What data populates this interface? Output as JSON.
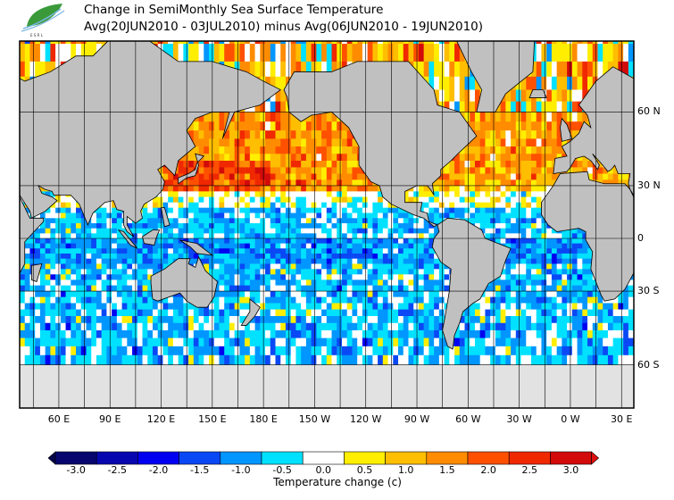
{
  "logo": {
    "text": "ESRL PSD"
  },
  "title": {
    "line1": "Change in SemiMonthly Sea Surface Temperature",
    "line2": "Avg(20JUN2010 - 03JUL2010) minus Avg(06JUN2010 - 19JUN2010)"
  },
  "map": {
    "lat_labels": [
      {
        "lat": 60,
        "label": "60 N"
      },
      {
        "lat": 30,
        "label": "30 N"
      },
      {
        "lat": 0,
        "label": "0"
      },
      {
        "lat": -30,
        "label": "30 S"
      },
      {
        "lat": -60,
        "label": "60 S"
      }
    ],
    "lon_labels": [
      {
        "lon": 60,
        "label": "60 E"
      },
      {
        "lon": 90,
        "label": "90 E"
      },
      {
        "lon": 120,
        "label": "120 E"
      },
      {
        "lon": 150,
        "label": "150 E"
      },
      {
        "lon": 180,
        "label": "180 E"
      },
      {
        "lon": 210,
        "label": "150 W"
      },
      {
        "lon": 240,
        "label": "120 W"
      },
      {
        "lon": 270,
        "label": "90 W"
      },
      {
        "lon": 300,
        "label": "60 W"
      },
      {
        "lon": 330,
        "label": "30 W"
      },
      {
        "lon": 360,
        "label": "0 W"
      },
      {
        "lon": 390,
        "label": "30 E"
      }
    ],
    "land_color": "#c0c0c0",
    "ice_color": "#e2e2e2"
  },
  "colorbar": {
    "title": "Temperature change  (c)",
    "labels": [
      "-3.0",
      "-2.5",
      "-2.0",
      "-1.5",
      "-1.0",
      "-0.5",
      "0.0",
      "0.5",
      "1.0",
      "1.5",
      "2.0",
      "2.5",
      "3.0"
    ],
    "colors": [
      "#06066e",
      "#0707b0",
      "#0000f0",
      "#0a48f5",
      "#0096ff",
      "#00e1ff",
      "#ffffff",
      "#ffee00",
      "#ffbe00",
      "#ff8c00",
      "#ff5000",
      "#f02800",
      "#d20a0a"
    ],
    "under_color": "#03034a",
    "over_color": "#e01010"
  }
}
